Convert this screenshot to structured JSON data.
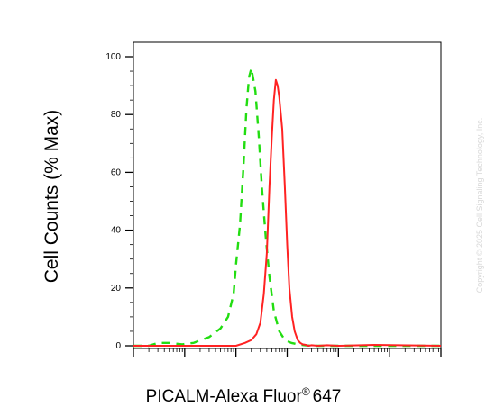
{
  "chart_data": {
    "type": "line",
    "title": "",
    "xlabel": "PICALM-Alexa Fluor",
    "xlabel_superscript": "®",
    "xlabel_suffix": "647",
    "ylabel": "Cell Counts (% Max)",
    "x_scale": "log",
    "xlim": [
      0.1,
      100000
    ],
    "ylim": [
      0,
      100
    ],
    "y_ticks": [
      0,
      20,
      40,
      60,
      80,
      100
    ],
    "grid": false,
    "legend": "none",
    "series": [
      {
        "style": "dashed",
        "color": "#22dd11",
        "x": [
          0.1,
          0.2,
          0.3,
          0.5,
          0.9,
          1.5,
          3,
          5,
          7,
          9,
          10,
          12,
          14,
          16,
          18,
          20,
          24,
          28,
          32,
          38,
          45,
          55,
          70,
          90,
          120,
          160,
          220,
          300,
          500,
          1000,
          5000,
          100000
        ],
        "y": [
          0,
          0,
          1,
          1,
          0.5,
          1,
          3,
          6,
          10,
          18,
          28,
          42,
          62,
          82,
          93,
          96,
          88,
          72,
          55,
          38,
          24,
          12,
          5,
          2,
          1,
          0.5,
          0.2,
          0,
          0,
          0,
          0,
          0
        ]
      },
      {
        "style": "solid",
        "color": "#ff2222",
        "x": [
          0.1,
          5,
          10,
          15,
          20,
          25,
          30,
          35,
          40,
          45,
          50,
          55,
          60,
          65,
          70,
          80,
          90,
          100,
          110,
          125,
          140,
          160,
          180,
          200,
          230,
          260,
          300,
          400,
          600,
          1000,
          5000,
          100000
        ],
        "y": [
          0,
          0,
          0,
          1,
          2,
          4,
          8,
          18,
          32,
          55,
          72,
          85,
          92,
          90,
          86,
          75,
          55,
          35,
          20,
          10,
          5,
          2,
          1,
          0.5,
          0.3,
          0,
          0.2,
          0,
          0.2,
          0,
          0.3,
          0
        ]
      }
    ]
  },
  "watermark": "Copyright © 2025 Cell Signaling Technology, Inc."
}
